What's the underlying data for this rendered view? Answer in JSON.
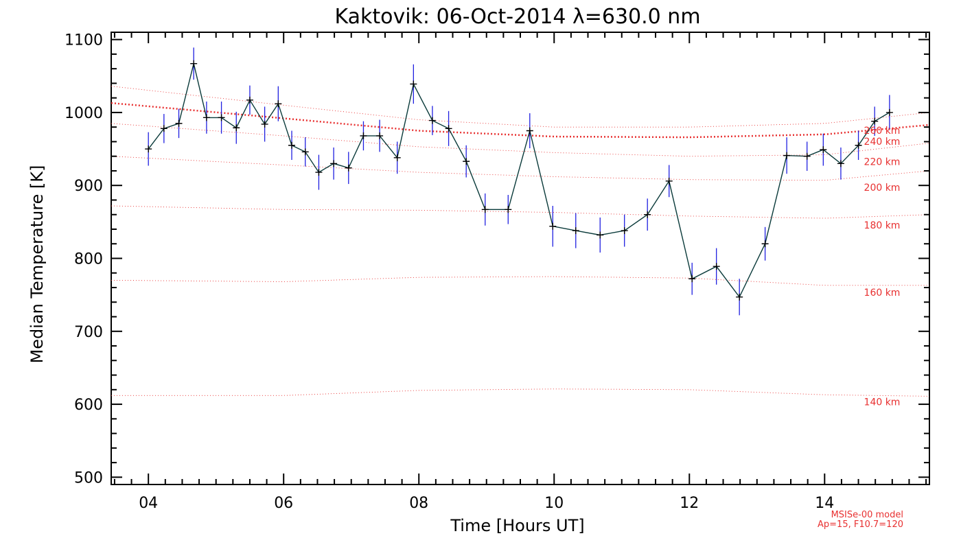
{
  "chart_data": {
    "type": "line",
    "title": "Kaktovik: 06-Oct-2014 λ=630.0 nm",
    "xlabel": "Time [Hours UT]",
    "ylabel": "Median Temperature [K]",
    "xlim": [
      3.45,
      15.55
    ],
    "ylim": [
      490,
      1110
    ],
    "x_ticks": [
      4,
      6,
      8,
      10,
      12,
      14
    ],
    "x_tick_labels": [
      "04",
      "06",
      "08",
      "10",
      "12",
      "14"
    ],
    "y_ticks": [
      500,
      600,
      700,
      800,
      900,
      1000,
      1100
    ],
    "y_tick_labels": [
      "500",
      "600",
      "700",
      "800",
      "900",
      "1000",
      "1100"
    ],
    "grid": false,
    "series": [
      {
        "color": "#0a3a3a",
        "errorbar_color": "#1f1fe0",
        "x": [
          4.0,
          4.23,
          4.45,
          4.67,
          4.86,
          5.08,
          5.3,
          5.5,
          5.72,
          5.92,
          6.12,
          6.32,
          6.52,
          6.74,
          6.96,
          7.18,
          7.42,
          7.68,
          7.92,
          8.2,
          8.44,
          8.7,
          8.98,
          9.32,
          9.64,
          9.98,
          10.32,
          10.68,
          11.04,
          11.38,
          11.7,
          12.04,
          12.4,
          12.74,
          13.12,
          13.44,
          13.74,
          13.98,
          14.24,
          14.5,
          14.74,
          14.96
        ],
        "y": [
          950,
          978,
          985,
          1067,
          993,
          993,
          979,
          1017,
          984,
          1012,
          955,
          946,
          918,
          930,
          924,
          968,
          968,
          938,
          1039,
          989,
          978,
          933,
          867,
          867,
          975,
          844,
          838,
          832,
          838,
          860,
          906,
          772,
          789,
          747,
          820,
          941,
          940,
          949,
          930,
          955,
          988,
          1000
        ],
        "err": [
          23,
          20,
          20,
          22,
          22,
          22,
          22,
          20,
          24,
          24,
          20,
          20,
          24,
          22,
          22,
          20,
          22,
          22,
          27,
          20,
          24,
          22,
          22,
          20,
          24,
          28,
          24,
          24,
          22,
          22,
          22,
          22,
          25,
          25,
          23,
          25,
          20,
          22,
          22,
          20,
          20,
          24
        ]
      }
    ],
    "model_curves": [
      {
        "label": "140 km",
        "x": [
          3.45,
          6.0,
          8.0,
          10.0,
          12.0,
          14.0,
          15.55
        ],
        "y": [
          612,
          612,
          619,
          621,
          620,
          613,
          611
        ],
        "dense": false
      },
      {
        "label": "160 km",
        "x": [
          3.45,
          6.0,
          8.0,
          10.0,
          12.0,
          14.0,
          15.55
        ],
        "y": [
          770,
          768,
          774,
          775,
          773,
          763,
          763
        ],
        "dense": false
      },
      {
        "label": "180 km",
        "x": [
          3.45,
          6.0,
          8.0,
          10.0,
          12.0,
          14.0,
          15.55
        ],
        "y": [
          872,
          867,
          866,
          863,
          858,
          855,
          860
        ],
        "dense": false
      },
      {
        "label": "200 km",
        "x": [
          3.45,
          6.0,
          8.0,
          10.0,
          12.0,
          14.0,
          15.55
        ],
        "y": [
          940,
          928,
          918,
          912,
          908,
          907,
          920
        ],
        "dense": false
      },
      {
        "label": "220 km",
        "x": [
          3.45,
          6.0,
          8.0,
          10.0,
          12.0,
          14.0,
          15.55
        ],
        "y": [
          985,
          968,
          953,
          945,
          940,
          942,
          958
        ],
        "dense": false
      },
      {
        "label": "240 km",
        "x": [
          3.45,
          6.0,
          8.0,
          10.0,
          12.0,
          14.0,
          15.55
        ],
        "y": [
          1013,
          992,
          975,
          967,
          966,
          970,
          983
        ],
        "dense": true
      },
      {
        "label": "260 km",
        "x": [
          3.45,
          6.0,
          8.0,
          10.0,
          12.0,
          14.0,
          15.55
        ],
        "y": [
          1036,
          1010,
          990,
          980,
          980,
          985,
          1000
        ],
        "dense": false
      }
    ],
    "model_label_positions": [
      "140 km",
      "160 km",
      "180 km",
      "200 km",
      "220 km",
      "240 km",
      "260 km"
    ],
    "model_note": [
      "MSISe-00 model",
      "Ap=15, F10.7=120"
    ]
  },
  "colors": {
    "model_red": "#e83030",
    "line": "#0a3a3a",
    "errorbar": "#1f1fe0",
    "marker": "#000000"
  }
}
